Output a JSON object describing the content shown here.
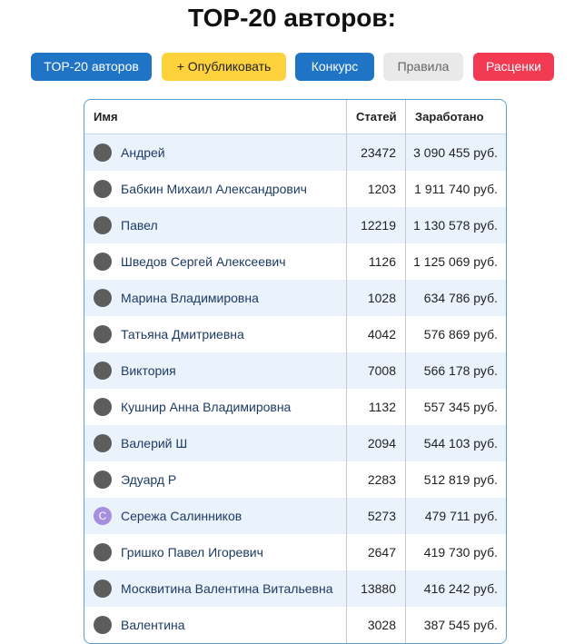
{
  "header": {
    "title": "TOP-20 авторов:"
  },
  "buttons": [
    "TOP-20 авторов",
    "+ Опубликовать",
    "Конкурс",
    "Правила",
    "Расценки"
  ],
  "table": {
    "columns": [
      "Имя",
      "Статей",
      "Заработано"
    ],
    "rows": [
      {
        "avatar": null,
        "name": "Андрей",
        "articles": "23472",
        "earned": "3 090 455 руб."
      },
      {
        "avatar": null,
        "name": "Бабкин Михаил Александрович",
        "articles": "1203",
        "earned": "1 911 740 руб."
      },
      {
        "avatar": null,
        "name": "Павел",
        "articles": "12219",
        "earned": "1 130 578 руб."
      },
      {
        "avatar": null,
        "name": "Шведов Сергей Алексеевич",
        "articles": "1126",
        "earned": "1 125 069 руб."
      },
      {
        "avatar": null,
        "name": "Марина Владимировна",
        "articles": "1028",
        "earned": "634 786 руб."
      },
      {
        "avatar": null,
        "name": "Татьяна Дмитриевна",
        "articles": "4042",
        "earned": "576 869 руб."
      },
      {
        "avatar": null,
        "name": "Виктория",
        "articles": "7008",
        "earned": "566 178 руб."
      },
      {
        "avatar": null,
        "name": "Кушнир Анна Владимировна",
        "articles": "1132",
        "earned": "557 345 руб."
      },
      {
        "avatar": null,
        "name": "Валерий Ш",
        "articles": "2094",
        "earned": "544 103 руб."
      },
      {
        "avatar": null,
        "name": "Эдуард Р",
        "articles": "2283",
        "earned": "512 819 руб."
      },
      {
        "avatar": "С",
        "name": "Сережа Салинников",
        "articles": "5273",
        "earned": "479 711 руб."
      },
      {
        "avatar": null,
        "name": "Гришко Павел Игоревич",
        "articles": "2647",
        "earned": "419 730 руб."
      },
      {
        "avatar": null,
        "name": "Москвитина Валентина Витальевна",
        "articles": "13880",
        "earned": "416 242 руб."
      },
      {
        "avatar": null,
        "name": "Валентина",
        "articles": "3028",
        "earned": "387 545 руб."
      }
    ]
  }
}
